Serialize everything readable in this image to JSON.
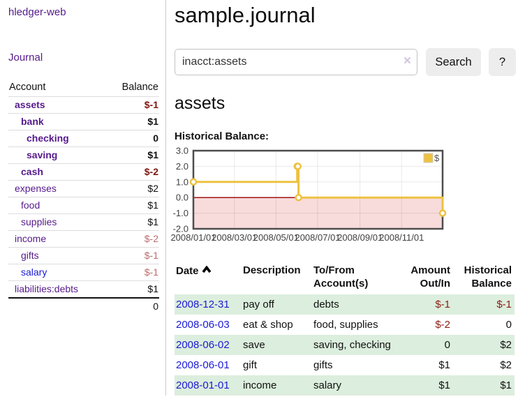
{
  "app": {
    "brand": "hledger-web",
    "nav_journal": "Journal"
  },
  "sidebar": {
    "columns": {
      "account": "Account",
      "balance": "Balance"
    },
    "accounts": [
      {
        "name": "assets",
        "balance": "$-1"
      },
      {
        "name": "bank",
        "balance": "$1"
      },
      {
        "name": "checking",
        "balance": "0"
      },
      {
        "name": "saving",
        "balance": "$1"
      },
      {
        "name": "cash",
        "balance": "$-2"
      },
      {
        "name": "expenses",
        "balance": "$2"
      },
      {
        "name": "food",
        "balance": "$1"
      },
      {
        "name": "supplies",
        "balance": "$1"
      },
      {
        "name": "income",
        "balance": "$-2"
      },
      {
        "name": "gifts",
        "balance": "$-1"
      },
      {
        "name": "salary",
        "balance": "$-1"
      },
      {
        "name": "liabilities:debts",
        "balance": "$1"
      }
    ],
    "total": "0"
  },
  "header": {
    "title": "sample.journal"
  },
  "search": {
    "value": "inacct:assets",
    "clear_icon": "×",
    "search_button": "Search",
    "help_button": "?"
  },
  "account_page": {
    "title": "assets",
    "chart_label": "Historical Balance:"
  },
  "chart_data": {
    "type": "line",
    "title": "Historical Balance",
    "xlabel": "",
    "ylabel": "",
    "xlim": [
      "2008-01-01",
      "2008-12-31"
    ],
    "ylim": [
      -2,
      3
    ],
    "y_ticks": [
      3,
      2,
      1,
      0,
      -1,
      -2
    ],
    "x_ticks": [
      "2008/01/01",
      "2008/03/01",
      "2008/05/01",
      "2008/07/01",
      "2008/09/01",
      "2008/11/01"
    ],
    "grid": true,
    "legend_position": "top-right",
    "negative_fill": "#f8dbdb",
    "zero_line_color": "#990000",
    "series": [
      {
        "name": "$",
        "color": "#edc240",
        "steps": true,
        "points": [
          [
            "2008-01-01",
            1
          ],
          [
            "2008-06-01",
            2
          ],
          [
            "2008-06-02",
            2
          ],
          [
            "2008-06-03",
            0
          ],
          [
            "2008-12-31",
            -1
          ]
        ]
      }
    ]
  },
  "register": {
    "columns": {
      "date": "Date",
      "description": "Description",
      "tofrom_1": "To/From",
      "tofrom_2": "Account(s)",
      "amount_1": "Amount",
      "amount_2": "Out/In",
      "balance_1": "Historical",
      "balance_2": "Balance"
    },
    "rows": [
      {
        "date": "2008-12-31",
        "description": "pay off",
        "accounts": "debts",
        "amount": "$-1",
        "balance": "$-1"
      },
      {
        "date": "2008-06-03",
        "description": "eat & shop",
        "accounts": "food, supplies",
        "amount": "$-2",
        "balance": "0"
      },
      {
        "date": "2008-06-02",
        "description": "save",
        "accounts": "saving, checking",
        "amount": "0",
        "balance": "$2"
      },
      {
        "date": "2008-06-01",
        "description": "gift",
        "accounts": "gifts",
        "amount": "$1",
        "balance": "$2"
      },
      {
        "date": "2008-01-01",
        "description": "income",
        "accounts": "salary",
        "amount": "$1",
        "balance": "$1"
      }
    ]
  },
  "colors": {
    "visited_link_purple": "#551a8b",
    "link_blue": "#1a1ad8",
    "negative_bold_red": "#7d150f",
    "negative_soft_red": "#bd6c6c",
    "table_row_green": "#dceedd",
    "series_gold": "#edc240",
    "negative_area_pink": "#f8dbdb",
    "zero_line_red": "#990000"
  }
}
